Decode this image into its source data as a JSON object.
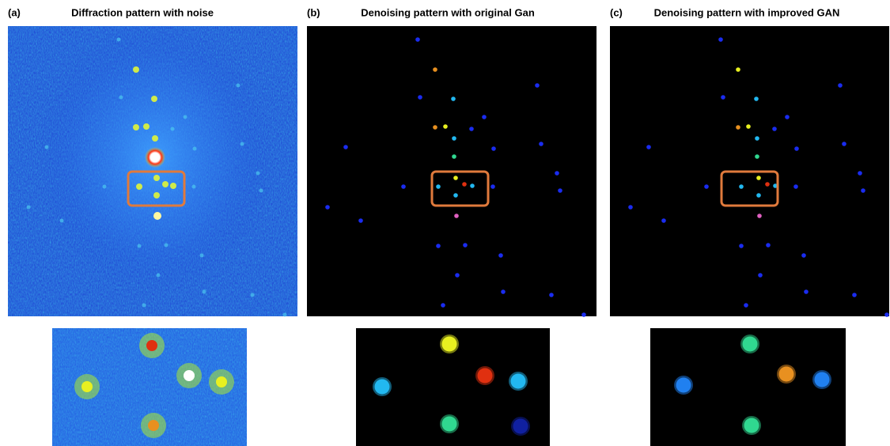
{
  "panels": [
    {
      "label": "(a)",
      "title": "Diffraction pattern with noise"
    },
    {
      "label": "(b)",
      "title": "Denoising pattern with original Gan"
    },
    {
      "label": "(c)",
      "title": "Denoising pattern with improved GAN"
    }
  ]
}
